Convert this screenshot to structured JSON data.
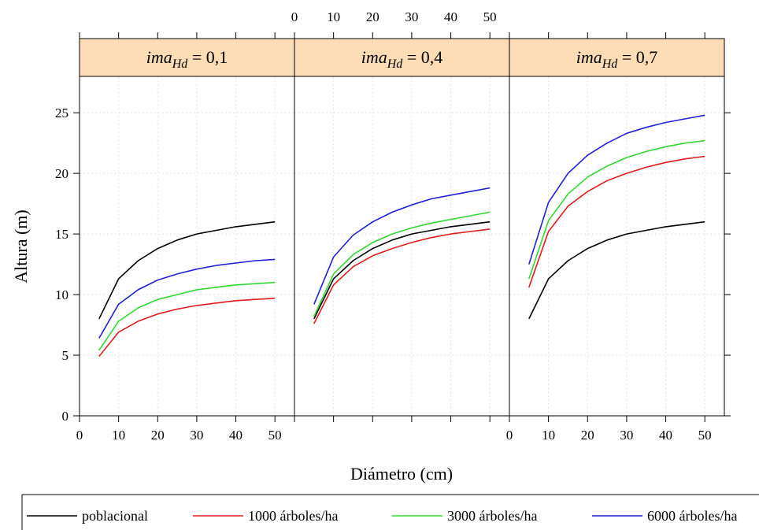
{
  "chart_data": {
    "type": "line",
    "xlabel": "Diámetro (cm)",
    "ylabel": "Altura  (m)",
    "xlim": [
      0,
      55
    ],
    "ylim": [
      0,
      28
    ],
    "x_ticks": [
      0,
      10,
      20,
      30,
      40,
      50
    ],
    "y_ticks": [
      0,
      5,
      10,
      15,
      20,
      25
    ],
    "grid": true,
    "legend_position": "bottom",
    "panels": [
      {
        "strip": {
          "var": "ima",
          "sub": "Hd",
          "value": "0,1"
        },
        "series": [
          {
            "name": "poblacional",
            "color": "#000000",
            "x": [
              5,
              10,
              15,
              20,
              25,
              30,
              35,
              40,
              45,
              50
            ],
            "y": [
              8.0,
              11.3,
              12.8,
              13.8,
              14.5,
              15.0,
              15.3,
              15.6,
              15.8,
              16.0
            ]
          },
          {
            "name": "1000  árboles/ha",
            "color": "#e31a1c",
            "x": [
              5,
              10,
              15,
              20,
              25,
              30,
              35,
              40,
              45,
              50
            ],
            "y": [
              4.9,
              6.9,
              7.8,
              8.4,
              8.8,
              9.1,
              9.3,
              9.5,
              9.6,
              9.7
            ]
          },
          {
            "name": "3000  árboles/ha",
            "color": "#2ed82e",
            "x": [
              5,
              10,
              15,
              20,
              25,
              30,
              35,
              40,
              45,
              50
            ],
            "y": [
              5.4,
              7.8,
              8.9,
              9.6,
              10.0,
              10.4,
              10.6,
              10.8,
              10.9,
              11.0
            ]
          },
          {
            "name": "6000  árboles/ha",
            "color": "#1f1fd6",
            "x": [
              5,
              10,
              15,
              20,
              25,
              30,
              35,
              40,
              45,
              50
            ],
            "y": [
              6.4,
              9.2,
              10.4,
              11.2,
              11.7,
              12.1,
              12.4,
              12.6,
              12.8,
              12.9
            ]
          }
        ]
      },
      {
        "strip": {
          "var": "ima",
          "sub": "Hd",
          "value": "0,4"
        },
        "series": [
          {
            "name": "poblacional",
            "color": "#000000",
            "x": [
              5,
              10,
              15,
              20,
              25,
              30,
              35,
              40,
              45,
              50
            ],
            "y": [
              8.0,
              11.3,
              12.8,
              13.8,
              14.5,
              15.0,
              15.3,
              15.6,
              15.8,
              16.0
            ]
          },
          {
            "name": "1000  árboles/ha",
            "color": "#e31a1c",
            "x": [
              5,
              10,
              15,
              20,
              25,
              30,
              35,
              40,
              45,
              50
            ],
            "y": [
              7.6,
              10.8,
              12.3,
              13.2,
              13.8,
              14.3,
              14.7,
              15.0,
              15.2,
              15.4
            ]
          },
          {
            "name": "3000  árboles/ha",
            "color": "#2ed82e",
            "x": [
              5,
              10,
              15,
              20,
              25,
              30,
              35,
              40,
              45,
              50
            ],
            "y": [
              8.2,
              11.7,
              13.3,
              14.3,
              15.0,
              15.5,
              15.9,
              16.2,
              16.5,
              16.8
            ]
          },
          {
            "name": "6000  árboles/ha",
            "color": "#1f1fd6",
            "x": [
              5,
              10,
              15,
              20,
              25,
              30,
              35,
              40,
              45,
              50
            ],
            "y": [
              9.2,
              13.1,
              14.9,
              16.0,
              16.8,
              17.4,
              17.9,
              18.2,
              18.5,
              18.8
            ]
          }
        ]
      },
      {
        "strip": {
          "var": "ima",
          "sub": "Hd",
          "value": "0,7"
        },
        "series": [
          {
            "name": "poblacional",
            "color": "#000000",
            "x": [
              5,
              10,
              15,
              20,
              25,
              30,
              35,
              40,
              45,
              50
            ],
            "y": [
              8.0,
              11.3,
              12.8,
              13.8,
              14.5,
              15.0,
              15.3,
              15.6,
              15.8,
              16.0
            ]
          },
          {
            "name": "1000  árboles/ha",
            "color": "#e31a1c",
            "x": [
              5,
              10,
              15,
              20,
              25,
              30,
              35,
              40,
              45,
              50
            ],
            "y": [
              10.6,
              15.2,
              17.3,
              18.5,
              19.4,
              20.0,
              20.5,
              20.9,
              21.2,
              21.4
            ]
          },
          {
            "name": "3000  árboles/ha",
            "color": "#2ed82e",
            "x": [
              5,
              10,
              15,
              20,
              25,
              30,
              35,
              40,
              45,
              50
            ],
            "y": [
              11.3,
              16.1,
              18.3,
              19.7,
              20.6,
              21.3,
              21.8,
              22.2,
              22.5,
              22.7
            ]
          },
          {
            "name": "6000  árboles/ha",
            "color": "#1f1fd6",
            "x": [
              5,
              10,
              15,
              20,
              25,
              30,
              35,
              40,
              45,
              50
            ],
            "y": [
              12.5,
              17.6,
              20.0,
              21.5,
              22.5,
              23.3,
              23.8,
              24.2,
              24.5,
              24.8
            ]
          }
        ]
      }
    ],
    "legend": [
      {
        "label": "poblacional",
        "color": "#000000"
      },
      {
        "label": "1000  árboles/ha",
        "color": "#e31a1c"
      },
      {
        "label": "3000  árboles/ha",
        "color": "#2ed82e"
      },
      {
        "label": "6000  árboles/ha",
        "color": "#1f1fd6"
      }
    ],
    "strip_color": "#fddcb6"
  }
}
